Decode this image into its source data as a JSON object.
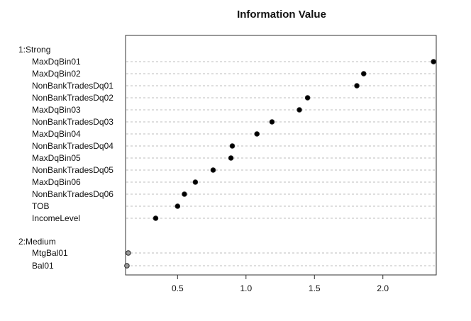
{
  "chart_data": {
    "type": "scatter",
    "title": "Information Value",
    "xlabel": "",
    "ylabel": "",
    "xlim": [
      0.12,
      2.39
    ],
    "xticks": [
      0.5,
      1.0,
      1.5,
      2.0
    ],
    "xtick_labels": [
      "0.5",
      "1.0",
      "1.5",
      "2.0"
    ],
    "grid": true,
    "groups": [
      {
        "name": "1:Strong",
        "color": "#000000",
        "items": [
          {
            "label": "MaxDqBin01",
            "value": 2.37
          },
          {
            "label": "MaxDqBin02",
            "value": 1.86
          },
          {
            "label": "NonBankTradesDq01",
            "value": 1.81
          },
          {
            "label": "NonBankTradesDq02",
            "value": 1.45
          },
          {
            "label": "MaxDqBin03",
            "value": 1.39
          },
          {
            "label": "NonBankTradesDq03",
            "value": 1.19
          },
          {
            "label": "MaxDqBin04",
            "value": 1.08
          },
          {
            "label": "NonBankTradesDq04",
            "value": 0.9
          },
          {
            "label": "MaxDqBin05",
            "value": 0.89
          },
          {
            "label": "NonBankTradesDq05",
            "value": 0.76
          },
          {
            "label": "MaxDqBin06",
            "value": 0.63
          },
          {
            "label": "NonBankTradesDq06",
            "value": 0.55
          },
          {
            "label": "TOB",
            "value": 0.5
          },
          {
            "label": "IncomeLevel",
            "value": 0.34
          }
        ]
      },
      {
        "name": "2:Medium",
        "color": "#999999",
        "items": [
          {
            "label": "MtgBal01",
            "value": 0.14
          },
          {
            "label": "Bal01",
            "value": 0.13
          }
        ]
      }
    ]
  }
}
